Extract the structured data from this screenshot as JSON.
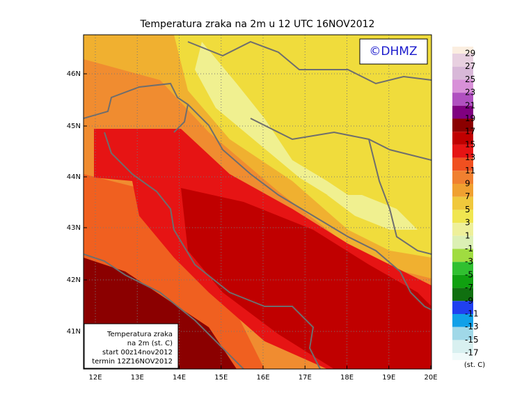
{
  "header": {
    "title": "Temperatura zraka na 2m u 12 UTC 16NOV2012"
  },
  "map": {
    "copyright": "©DHMZ",
    "lat_labels": [
      "46N",
      "45N",
      "44N",
      "43N",
      "42N",
      "41N"
    ],
    "lon_labels": [
      "12E",
      "13E",
      "14E",
      "15E",
      "16E",
      "17E",
      "18E",
      "19E",
      "20E"
    ]
  },
  "legend": {
    "labels": [
      29,
      27,
      25,
      23,
      21,
      19,
      17,
      15,
      13,
      11,
      9,
      7,
      5,
      3,
      1,
      -1,
      -3,
      -5,
      -7,
      -9,
      -11,
      -13,
      -15,
      -17
    ],
    "unit": "(st. C)"
  },
  "info_box": {
    "lines": [
      "Temperatura zraka",
      "na 2m (st. C)",
      "start 00z14nov2012",
      "termin 12Z16NOV2012"
    ]
  }
}
